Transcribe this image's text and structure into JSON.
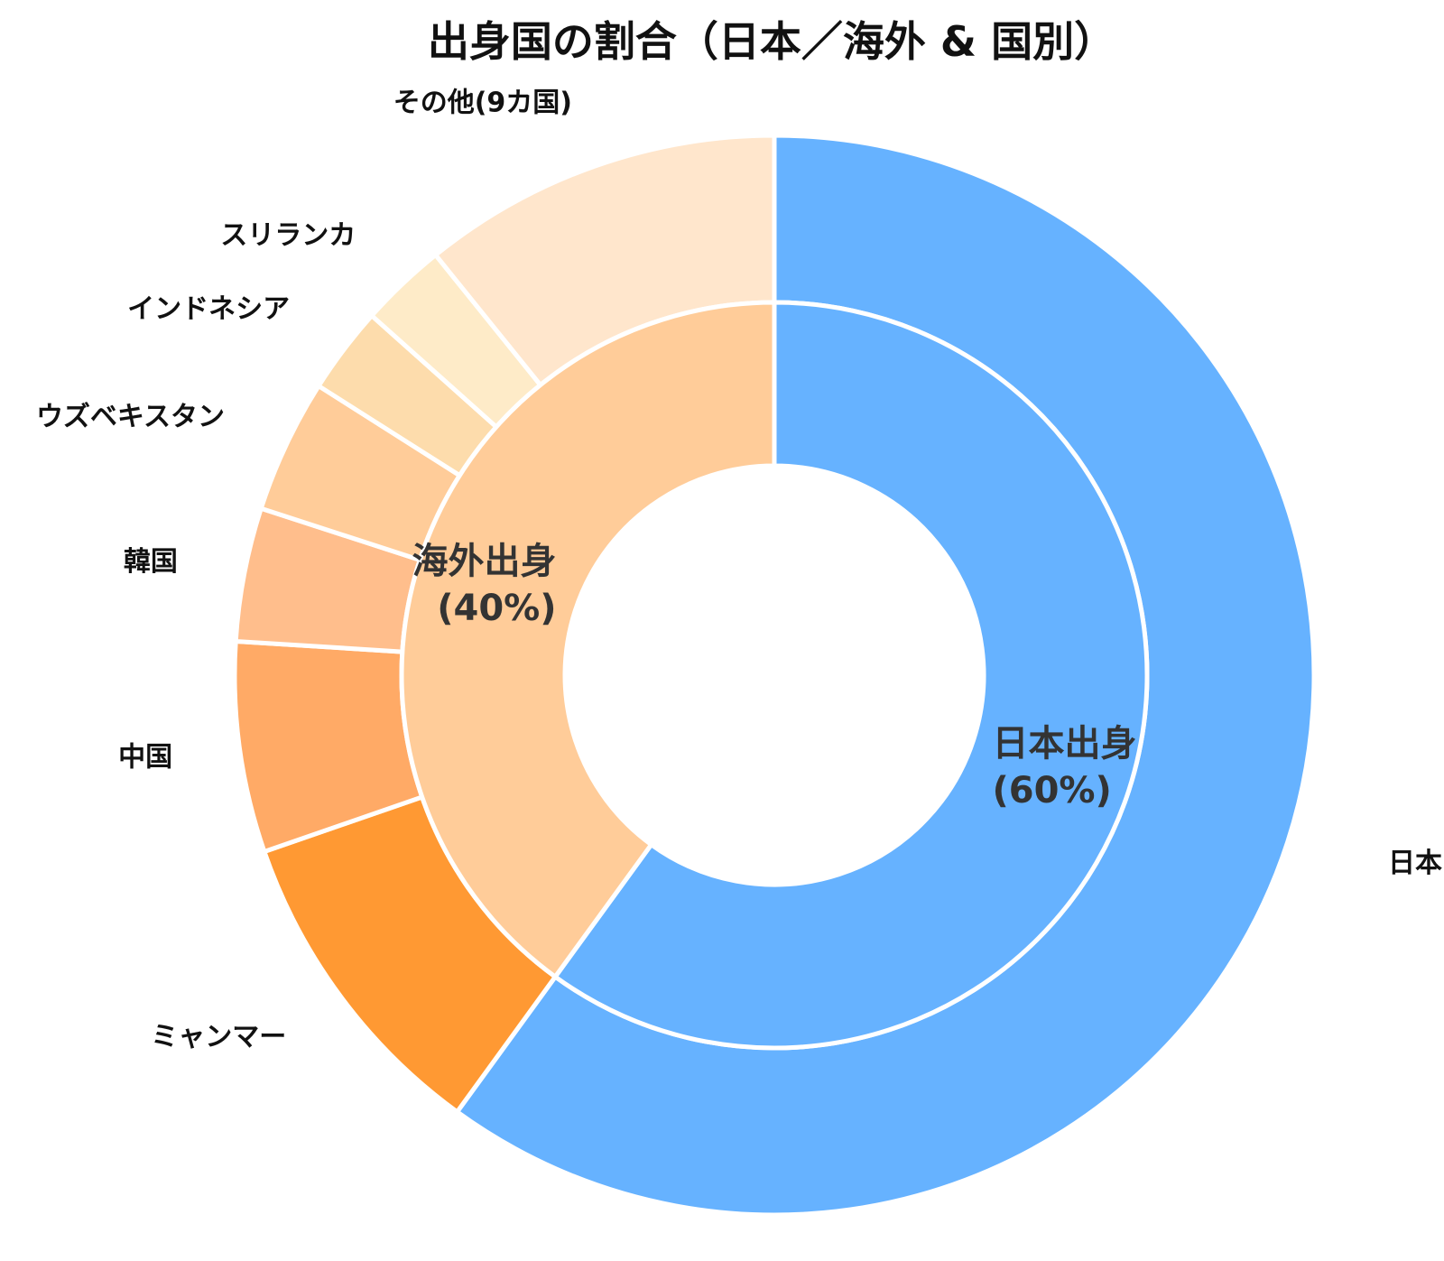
{
  "chart_data": {
    "type": "pie",
    "title": "出身国の割合（日本／海外 & 国別）",
    "inner_ring": [
      {
        "label": "日本出身",
        "pct_label": "(60%)",
        "value": 60,
        "color": "#66b2ff"
      },
      {
        "label": "海外出身",
        "pct_label": "(40%)",
        "value": 40,
        "color": "#ffcc99"
      }
    ],
    "outer_ring": [
      {
        "label": "日本",
        "value": 60,
        "color": "#66b2ff"
      },
      {
        "label": "ミャンマー",
        "value": 9.7,
        "color": "#ff9933"
      },
      {
        "label": "中国",
        "value": 6.3,
        "color": "#ffaa66"
      },
      {
        "label": "韓国",
        "value": 4.0,
        "color": "#ffbe8c"
      },
      {
        "label": "ウズベキスタン",
        "value": 4.0,
        "color": "#ffcc99"
      },
      {
        "label": "インドネシア",
        "value": 2.6,
        "color": "#fddcac"
      },
      {
        "label": "スリランカ",
        "value": 2.6,
        "color": "#feebc8"
      },
      {
        "label": "その他(9カ国)",
        "value": 10.8,
        "color": "#ffe6cc"
      }
    ]
  }
}
